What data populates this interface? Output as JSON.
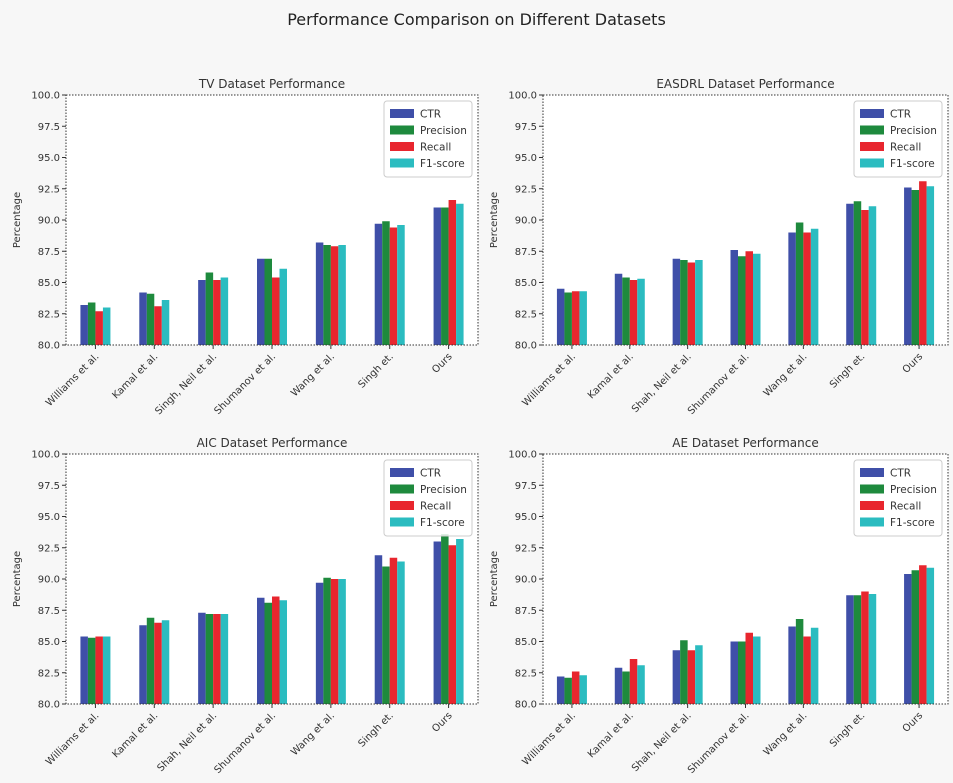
{
  "figure": {
    "title": "Performance Comparison on Different Datasets"
  },
  "legend_labels": [
    "CTR",
    "Precision",
    "Recall",
    "F1-score"
  ],
  "colors": {
    "CTR": "#3f4fa8",
    "Precision": "#1e8a3d",
    "Recall": "#e8262e",
    "F1-score": "#2bbcc0"
  },
  "chart_data": [
    {
      "type": "bar",
      "title": "TV Dataset Performance",
      "ylabel": "Percentage",
      "ylim": [
        80,
        100
      ],
      "yticks": [
        "80.0",
        "82.5",
        "85.0",
        "87.5",
        "90.0",
        "92.5",
        "95.0",
        "97.5",
        "100.0"
      ],
      "legend": "top-right",
      "categories": [
        "Williams et al.",
        "Kamal et al.",
        "Singh, Neil et al.",
        "Shumanov et al.",
        "Wang et al.",
        "Singh et.",
        "Ours"
      ],
      "series": [
        {
          "name": "CTR",
          "values": [
            83.2,
            84.2,
            85.2,
            86.9,
            88.2,
            89.7,
            91.0
          ]
        },
        {
          "name": "Precision",
          "values": [
            83.4,
            84.1,
            85.8,
            86.9,
            88.0,
            89.9,
            91.0
          ]
        },
        {
          "name": "Recall",
          "values": [
            82.7,
            83.1,
            85.2,
            85.4,
            87.9,
            89.4,
            91.6
          ]
        },
        {
          "name": "F1-score",
          "values": [
            83.0,
            83.6,
            85.4,
            86.1,
            88.0,
            89.6,
            91.3
          ]
        }
      ]
    },
    {
      "type": "bar",
      "title": "EASDRL Dataset Performance",
      "ylabel": "Percentage",
      "ylim": [
        80,
        100
      ],
      "yticks": [
        "80.0",
        "82.5",
        "85.0",
        "87.5",
        "90.0",
        "92.5",
        "95.0",
        "97.5",
        "100.0"
      ],
      "legend": "top-right",
      "categories": [
        "Williams et al.",
        "Kamal et al.",
        "Shah, Neil et al.",
        "Shumanov et al.",
        "Wang et al.",
        "Singh et.",
        "Ours"
      ],
      "series": [
        {
          "name": "CTR",
          "values": [
            84.5,
            85.7,
            86.9,
            87.6,
            89.0,
            91.3,
            92.6
          ]
        },
        {
          "name": "Precision",
          "values": [
            84.2,
            85.4,
            86.8,
            87.1,
            89.8,
            91.5,
            92.4
          ]
        },
        {
          "name": "Recall",
          "values": [
            84.3,
            85.2,
            86.6,
            87.5,
            89.0,
            90.8,
            93.1
          ]
        },
        {
          "name": "F1-score",
          "values": [
            84.3,
            85.3,
            86.8,
            87.3,
            89.3,
            91.1,
            92.7
          ]
        }
      ]
    },
    {
      "type": "bar",
      "title": "AIC Dataset Performance",
      "ylabel": "Percentage",
      "ylim": [
        80,
        100
      ],
      "yticks": [
        "80.0",
        "82.5",
        "85.0",
        "87.5",
        "90.0",
        "92.5",
        "95.0",
        "97.5",
        "100.0"
      ],
      "legend": "top-right",
      "categories": [
        "Williams et al.",
        "Kamal et al.",
        "Shah, Neil et al.",
        "Shumanov et al.",
        "Wang et al.",
        "Singh et.",
        "Ours"
      ],
      "series": [
        {
          "name": "CTR",
          "values": [
            85.4,
            86.3,
            87.3,
            88.5,
            89.7,
            91.9,
            93.0
          ]
        },
        {
          "name": "Precision",
          "values": [
            85.3,
            86.9,
            87.2,
            88.1,
            90.1,
            91.0,
            93.6
          ]
        },
        {
          "name": "Recall",
          "values": [
            85.4,
            86.5,
            87.2,
            88.6,
            90.0,
            91.7,
            92.7
          ]
        },
        {
          "name": "F1-score",
          "values": [
            85.4,
            86.7,
            87.2,
            88.3,
            90.0,
            91.4,
            93.2
          ]
        }
      ]
    },
    {
      "type": "bar",
      "title": "AE Dataset Performance",
      "ylabel": "Percentage",
      "ylim": [
        80,
        100
      ],
      "yticks": [
        "80.0",
        "82.5",
        "85.0",
        "87.5",
        "90.0",
        "92.5",
        "95.0",
        "97.5",
        "100.0"
      ],
      "legend": "top-right",
      "categories": [
        "Williams et al.",
        "Kamal et al.",
        "Shah, Neil et al.",
        "Shumanov et al.",
        "Wang et al.",
        "Singh et.",
        "Ours"
      ],
      "series": [
        {
          "name": "CTR",
          "values": [
            82.2,
            82.9,
            84.3,
            85.0,
            86.2,
            88.7,
            90.4
          ]
        },
        {
          "name": "Precision",
          "values": [
            82.1,
            82.6,
            85.1,
            85.0,
            86.8,
            88.7,
            90.7
          ]
        },
        {
          "name": "Recall",
          "values": [
            82.6,
            83.6,
            84.3,
            85.7,
            85.4,
            89.0,
            91.1
          ]
        },
        {
          "name": "F1-score",
          "values": [
            82.3,
            83.1,
            84.7,
            85.4,
            86.1,
            88.8,
            90.9
          ]
        }
      ]
    }
  ]
}
